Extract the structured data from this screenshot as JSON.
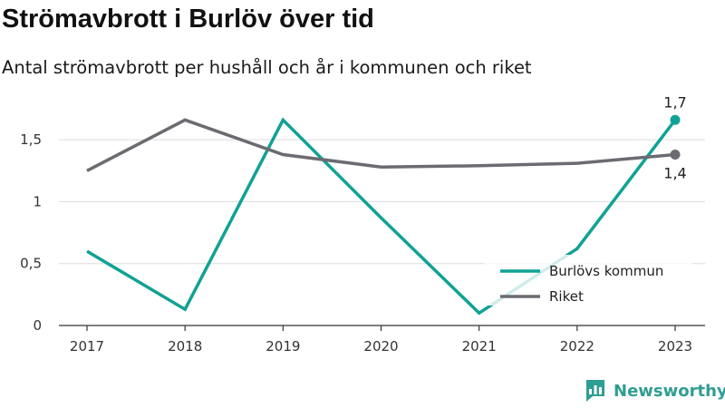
{
  "title": "Strömavbrott i Burlöv över tid",
  "subtitle": "Antal strömavbrott per hushåll och år i kommunen och riket",
  "brand": {
    "name": "Newsworthy",
    "icon": "newsworthy-logo-icon",
    "color": "#2f9e92"
  },
  "chart_data": {
    "type": "line",
    "x": [
      "2017",
      "2018",
      "2019",
      "2020",
      "2021",
      "2022",
      "2023"
    ],
    "y_ticks": [
      "0",
      "0,5",
      "1",
      "1,5"
    ],
    "y_tick_values": [
      0,
      0.5,
      1,
      1.5
    ],
    "ylim": [
      0,
      1.75
    ],
    "grid": true,
    "legend_position": "bottom-right",
    "series": [
      {
        "name": "Burlövs kommun",
        "color": "#10a294",
        "values": [
          0.6,
          0.13,
          1.66,
          0.87,
          0.1,
          0.62,
          1.66
        ]
      },
      {
        "name": "Riket",
        "color": "#6b6b72",
        "values": [
          1.25,
          1.66,
          1.38,
          1.28,
          1.29,
          1.31,
          1.38
        ]
      }
    ],
    "end_labels": [
      {
        "series": "Burlövs kommun",
        "text": "1,7"
      },
      {
        "series": "Riket",
        "text": "1,4"
      }
    ]
  }
}
